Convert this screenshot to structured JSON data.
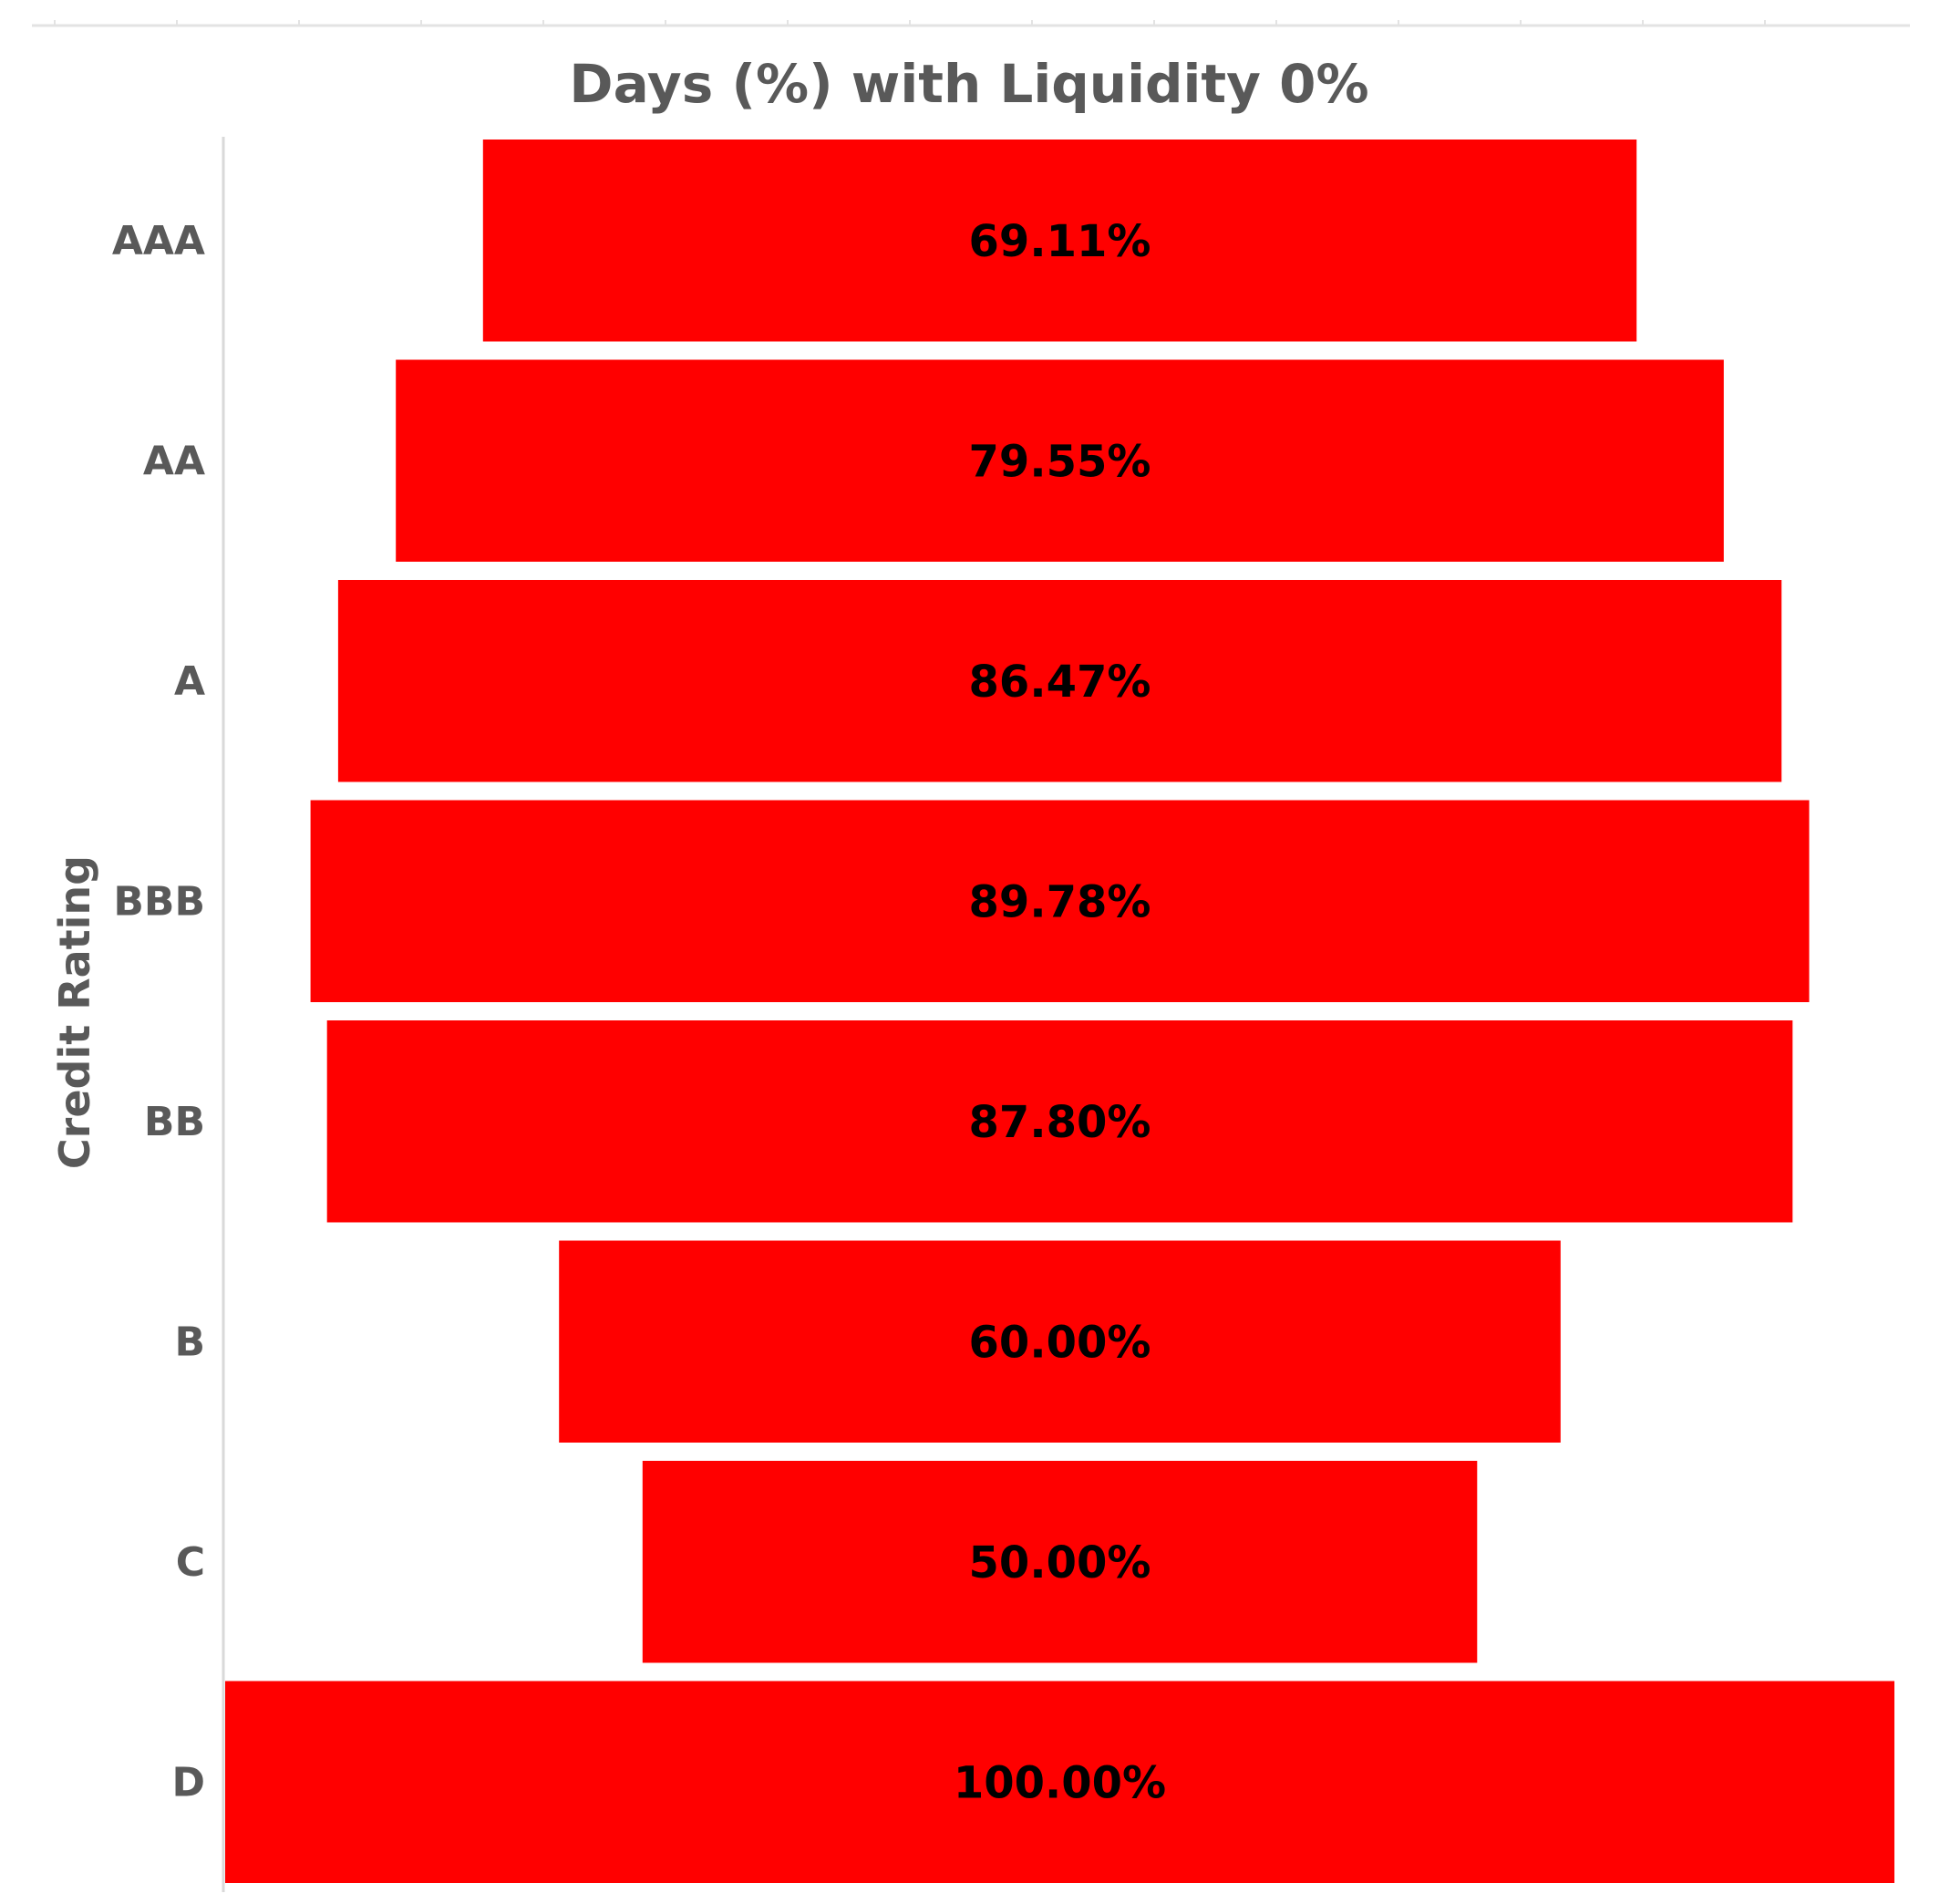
{
  "chart_data": {
    "type": "bar",
    "orientation": "horizontal",
    "layout": "funnel",
    "title": "Days (%) with Liquidity 0%",
    "xlabel": "",
    "ylabel": "Credit Rating",
    "categories": [
      "AAA",
      "AA",
      "A",
      "BBB",
      "BB",
      "B",
      "C",
      "D"
    ],
    "values": [
      69.11,
      79.55,
      86.47,
      89.78,
      87.8,
      60.0,
      50.0,
      100.0
    ],
    "data_labels": [
      "69.11%",
      "79.55%",
      "86.47%",
      "89.78%",
      "87.80%",
      "60.00%",
      "50.00%",
      "100.00%"
    ],
    "xlim": [
      0,
      100
    ],
    "grid": false,
    "legend": "none",
    "colors": {
      "bar": "#ff0000",
      "axis_line": "#d9d9d9",
      "text": "#595959",
      "data_label": "#000000"
    }
  }
}
